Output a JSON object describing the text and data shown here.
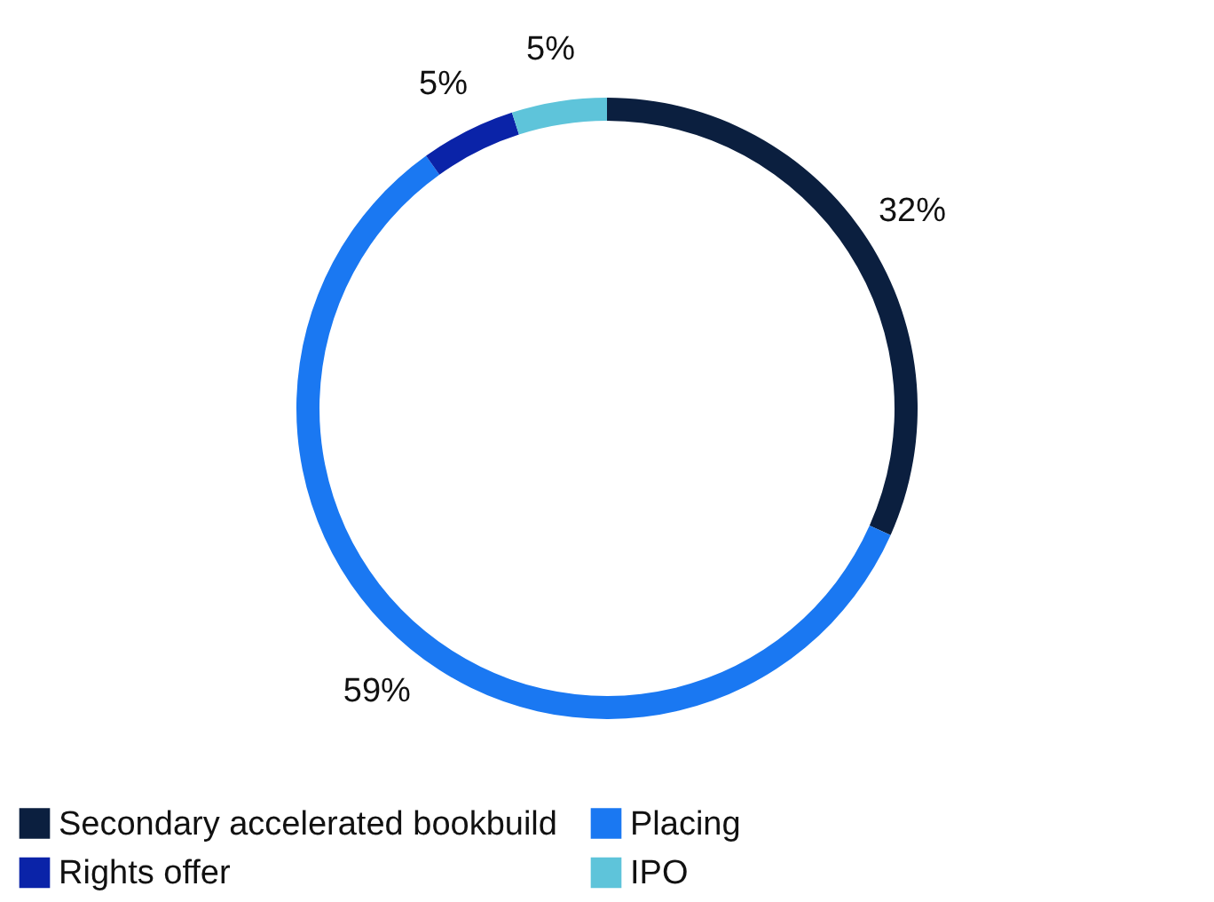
{
  "chart_data": {
    "type": "donut",
    "categories": [
      "Secondary accelerated bookbuild",
      "Placing",
      "Rights offer",
      "IPO"
    ],
    "values": [
      32,
      59,
      5,
      5
    ],
    "value_labels": [
      "32%",
      "59%",
      "5%",
      "5%"
    ],
    "colors": [
      "#0b1f3f",
      "#1a78f2",
      "#0a23a8",
      "#5ec4da"
    ],
    "legend": "bottom"
  }
}
